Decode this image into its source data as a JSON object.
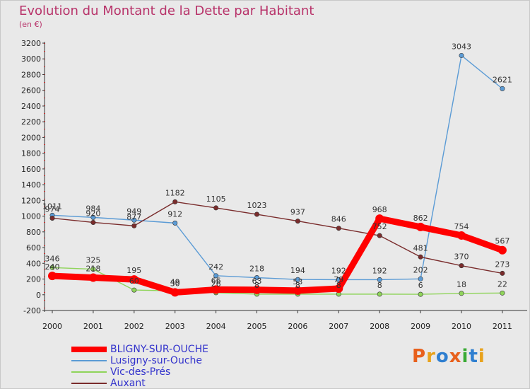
{
  "header": {
    "title": "Evolution du Montant de la Dette par Habitant",
    "subtitle": "(en €)"
  },
  "logo": {
    "text": "Proxiti",
    "colors": [
      "#e8601c",
      "#e8a21c",
      "#2f7fd0",
      "#e8601c",
      "#3aaa35",
      "#2f7fd0",
      "#e8a21c"
    ]
  },
  "chart_data": {
    "type": "line",
    "title": "Evolution du Montant de la Dette par Habitant",
    "subtitle": "(en €)",
    "x": [
      "2000",
      "2001",
      "2002",
      "2003",
      "2004",
      "2005",
      "2006",
      "2007",
      "2008",
      "2009",
      "2010",
      "2011"
    ],
    "ylim": [
      -200,
      3200
    ],
    "yticks": [
      -200,
      0,
      200,
      400,
      600,
      800,
      1000,
      1200,
      1400,
      1600,
      1800,
      2000,
      2200,
      2400,
      2600,
      2800,
      3000,
      3200
    ],
    "grid": false,
    "legend_position": "bottom-left",
    "series": [
      {
        "name": "BLIGNY-SUR-OUCHE",
        "color": "#ff0000",
        "values": [
          240,
          218,
          195,
          30,
          66,
          63,
          53,
          79,
          968,
          862,
          754,
          567
        ]
      },
      {
        "name": "Lusigny-sur-Ouche",
        "color": "#5b9bd5",
        "values": [
          1011,
          984,
          949,
          912,
          242,
          218,
          194,
          192,
          192,
          202,
          3043,
          2621
        ]
      },
      {
        "name": "Vic-des-Prés",
        "color": "#8fd45a",
        "values": [
          346,
          325,
          60,
          49,
          26,
          8,
          8,
          8,
          8,
          6,
          18,
          22
        ]
      },
      {
        "name": "Auxant",
        "color": "#7a2c2c",
        "values": [
          974,
          920,
          877,
          1182,
          1105,
          1023,
          937,
          846,
          752,
          481,
          370,
          273
        ]
      }
    ]
  }
}
